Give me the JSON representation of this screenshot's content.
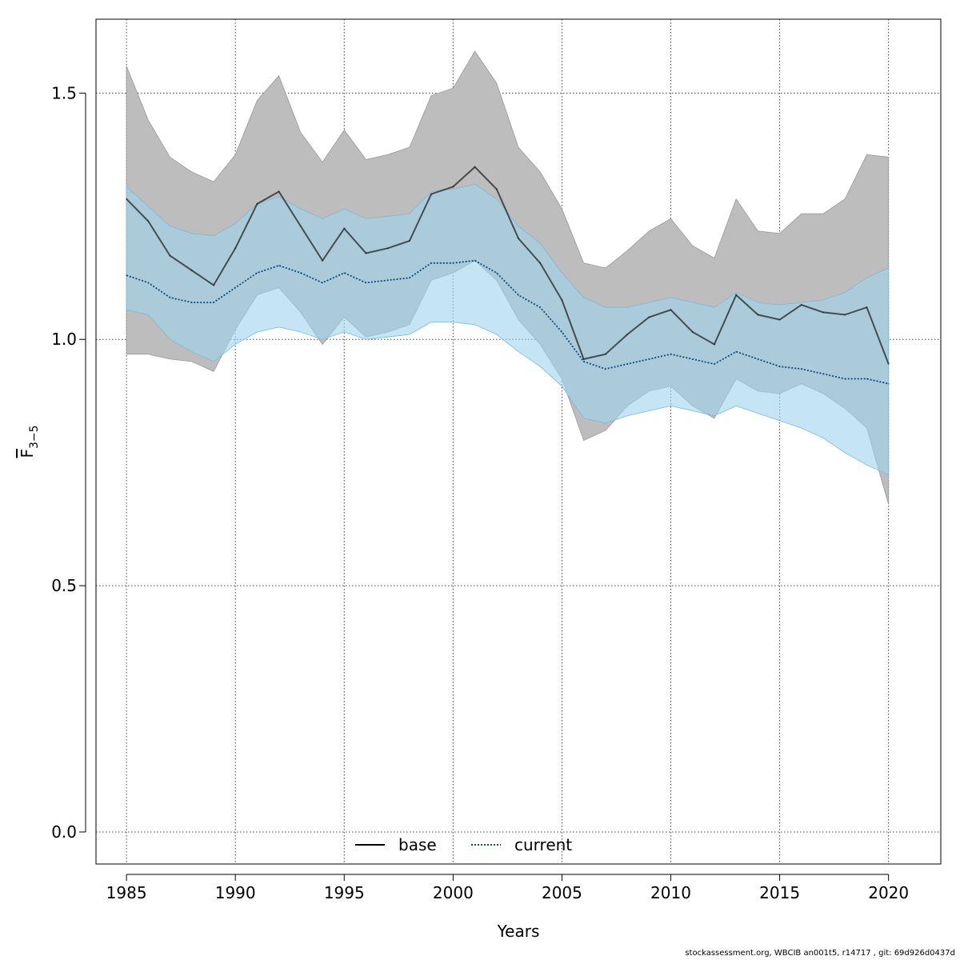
{
  "chart_data": {
    "type": "line",
    "xlabel": "Years",
    "ylabel": {
      "main": "F",
      "sub": "3−5"
    },
    "xlim": [
      1983.6,
      2022.4
    ],
    "ylim": [
      -0.065,
      1.65
    ],
    "x_ticks": [
      "1985",
      "1990",
      "1995",
      "2000",
      "2005",
      "2010",
      "2015",
      "2020"
    ],
    "y_ticks": [
      "0.0",
      "0.5",
      "1.0",
      "1.5"
    ],
    "grid": true,
    "legend_position": "bottom-center",
    "x": [
      1985,
      1986,
      1987,
      1988,
      1989,
      1990,
      1991,
      1992,
      1993,
      1994,
      1995,
      1996,
      1997,
      1998,
      1999,
      2000,
      2001,
      2002,
      2003,
      2004,
      2005,
      2006,
      2007,
      2008,
      2009,
      2010,
      2011,
      2012,
      2013,
      2014,
      2015,
      2016,
      2017,
      2018,
      2019,
      2020
    ],
    "series": [
      {
        "name": "base",
        "color": "#000000",
        "dash": "solid",
        "band_color": "#bdbdbd",
        "values": [
          1.285,
          1.24,
          1.17,
          1.14,
          1.11,
          1.185,
          1.275,
          1.3,
          1.23,
          1.16,
          1.225,
          1.175,
          1.185,
          1.2,
          1.295,
          1.31,
          1.35,
          1.305,
          1.205,
          1.155,
          1.08,
          0.96,
          0.97,
          1.01,
          1.045,
          1.06,
          1.015,
          0.99,
          1.09,
          1.05,
          1.04,
          1.07,
          1.055,
          1.05,
          1.065,
          0.95
        ],
        "lower": [
          0.97,
          0.97,
          0.96,
          0.955,
          0.935,
          1.02,
          1.09,
          1.105,
          1.055,
          0.99,
          1.045,
          1.005,
          1.015,
          1.03,
          1.12,
          1.135,
          1.16,
          1.12,
          1.04,
          0.99,
          0.92,
          0.795,
          0.815,
          0.865,
          0.895,
          0.905,
          0.865,
          0.84,
          0.92,
          0.895,
          0.89,
          0.91,
          0.89,
          0.86,
          0.82,
          0.665
        ],
        "upper": [
          1.555,
          1.445,
          1.37,
          1.34,
          1.32,
          1.375,
          1.485,
          1.535,
          1.42,
          1.36,
          1.425,
          1.365,
          1.375,
          1.39,
          1.495,
          1.51,
          1.585,
          1.52,
          1.39,
          1.34,
          1.265,
          1.155,
          1.145,
          1.18,
          1.22,
          1.245,
          1.19,
          1.165,
          1.285,
          1.22,
          1.215,
          1.255,
          1.255,
          1.285,
          1.375,
          1.37
        ]
      },
      {
        "name": "current",
        "color": "#0b4a7a",
        "dash": "dotted",
        "band_color": "#9fd3ef",
        "values": [
          1.13,
          1.115,
          1.085,
          1.075,
          1.075,
          1.105,
          1.135,
          1.15,
          1.135,
          1.115,
          1.135,
          1.115,
          1.12,
          1.125,
          1.155,
          1.155,
          1.16,
          1.135,
          1.09,
          1.065,
          1.015,
          0.955,
          0.94,
          0.95,
          0.96,
          0.97,
          0.96,
          0.95,
          0.975,
          0.96,
          0.945,
          0.94,
          0.93,
          0.92,
          0.92,
          0.91
        ],
        "lower": [
          1.06,
          1.05,
          1.0,
          0.975,
          0.955,
          0.99,
          1.015,
          1.025,
          1.015,
          1.0,
          1.015,
          1.0,
          1.005,
          1.01,
          1.035,
          1.035,
          1.03,
          1.01,
          0.975,
          0.945,
          0.905,
          0.84,
          0.83,
          0.845,
          0.855,
          0.865,
          0.855,
          0.845,
          0.865,
          0.85,
          0.835,
          0.82,
          0.8,
          0.77,
          0.745,
          0.725
        ],
        "upper": [
          1.31,
          1.27,
          1.23,
          1.215,
          1.21,
          1.235,
          1.275,
          1.29,
          1.265,
          1.245,
          1.265,
          1.245,
          1.25,
          1.255,
          1.3,
          1.305,
          1.315,
          1.285,
          1.23,
          1.195,
          1.135,
          1.085,
          1.065,
          1.065,
          1.075,
          1.085,
          1.075,
          1.065,
          1.095,
          1.075,
          1.07,
          1.075,
          1.08,
          1.095,
          1.125,
          1.145
        ]
      }
    ]
  },
  "footer": "stockassessment.org, WBCIB  an001t5, r14717 , git: 69d926d0437d"
}
